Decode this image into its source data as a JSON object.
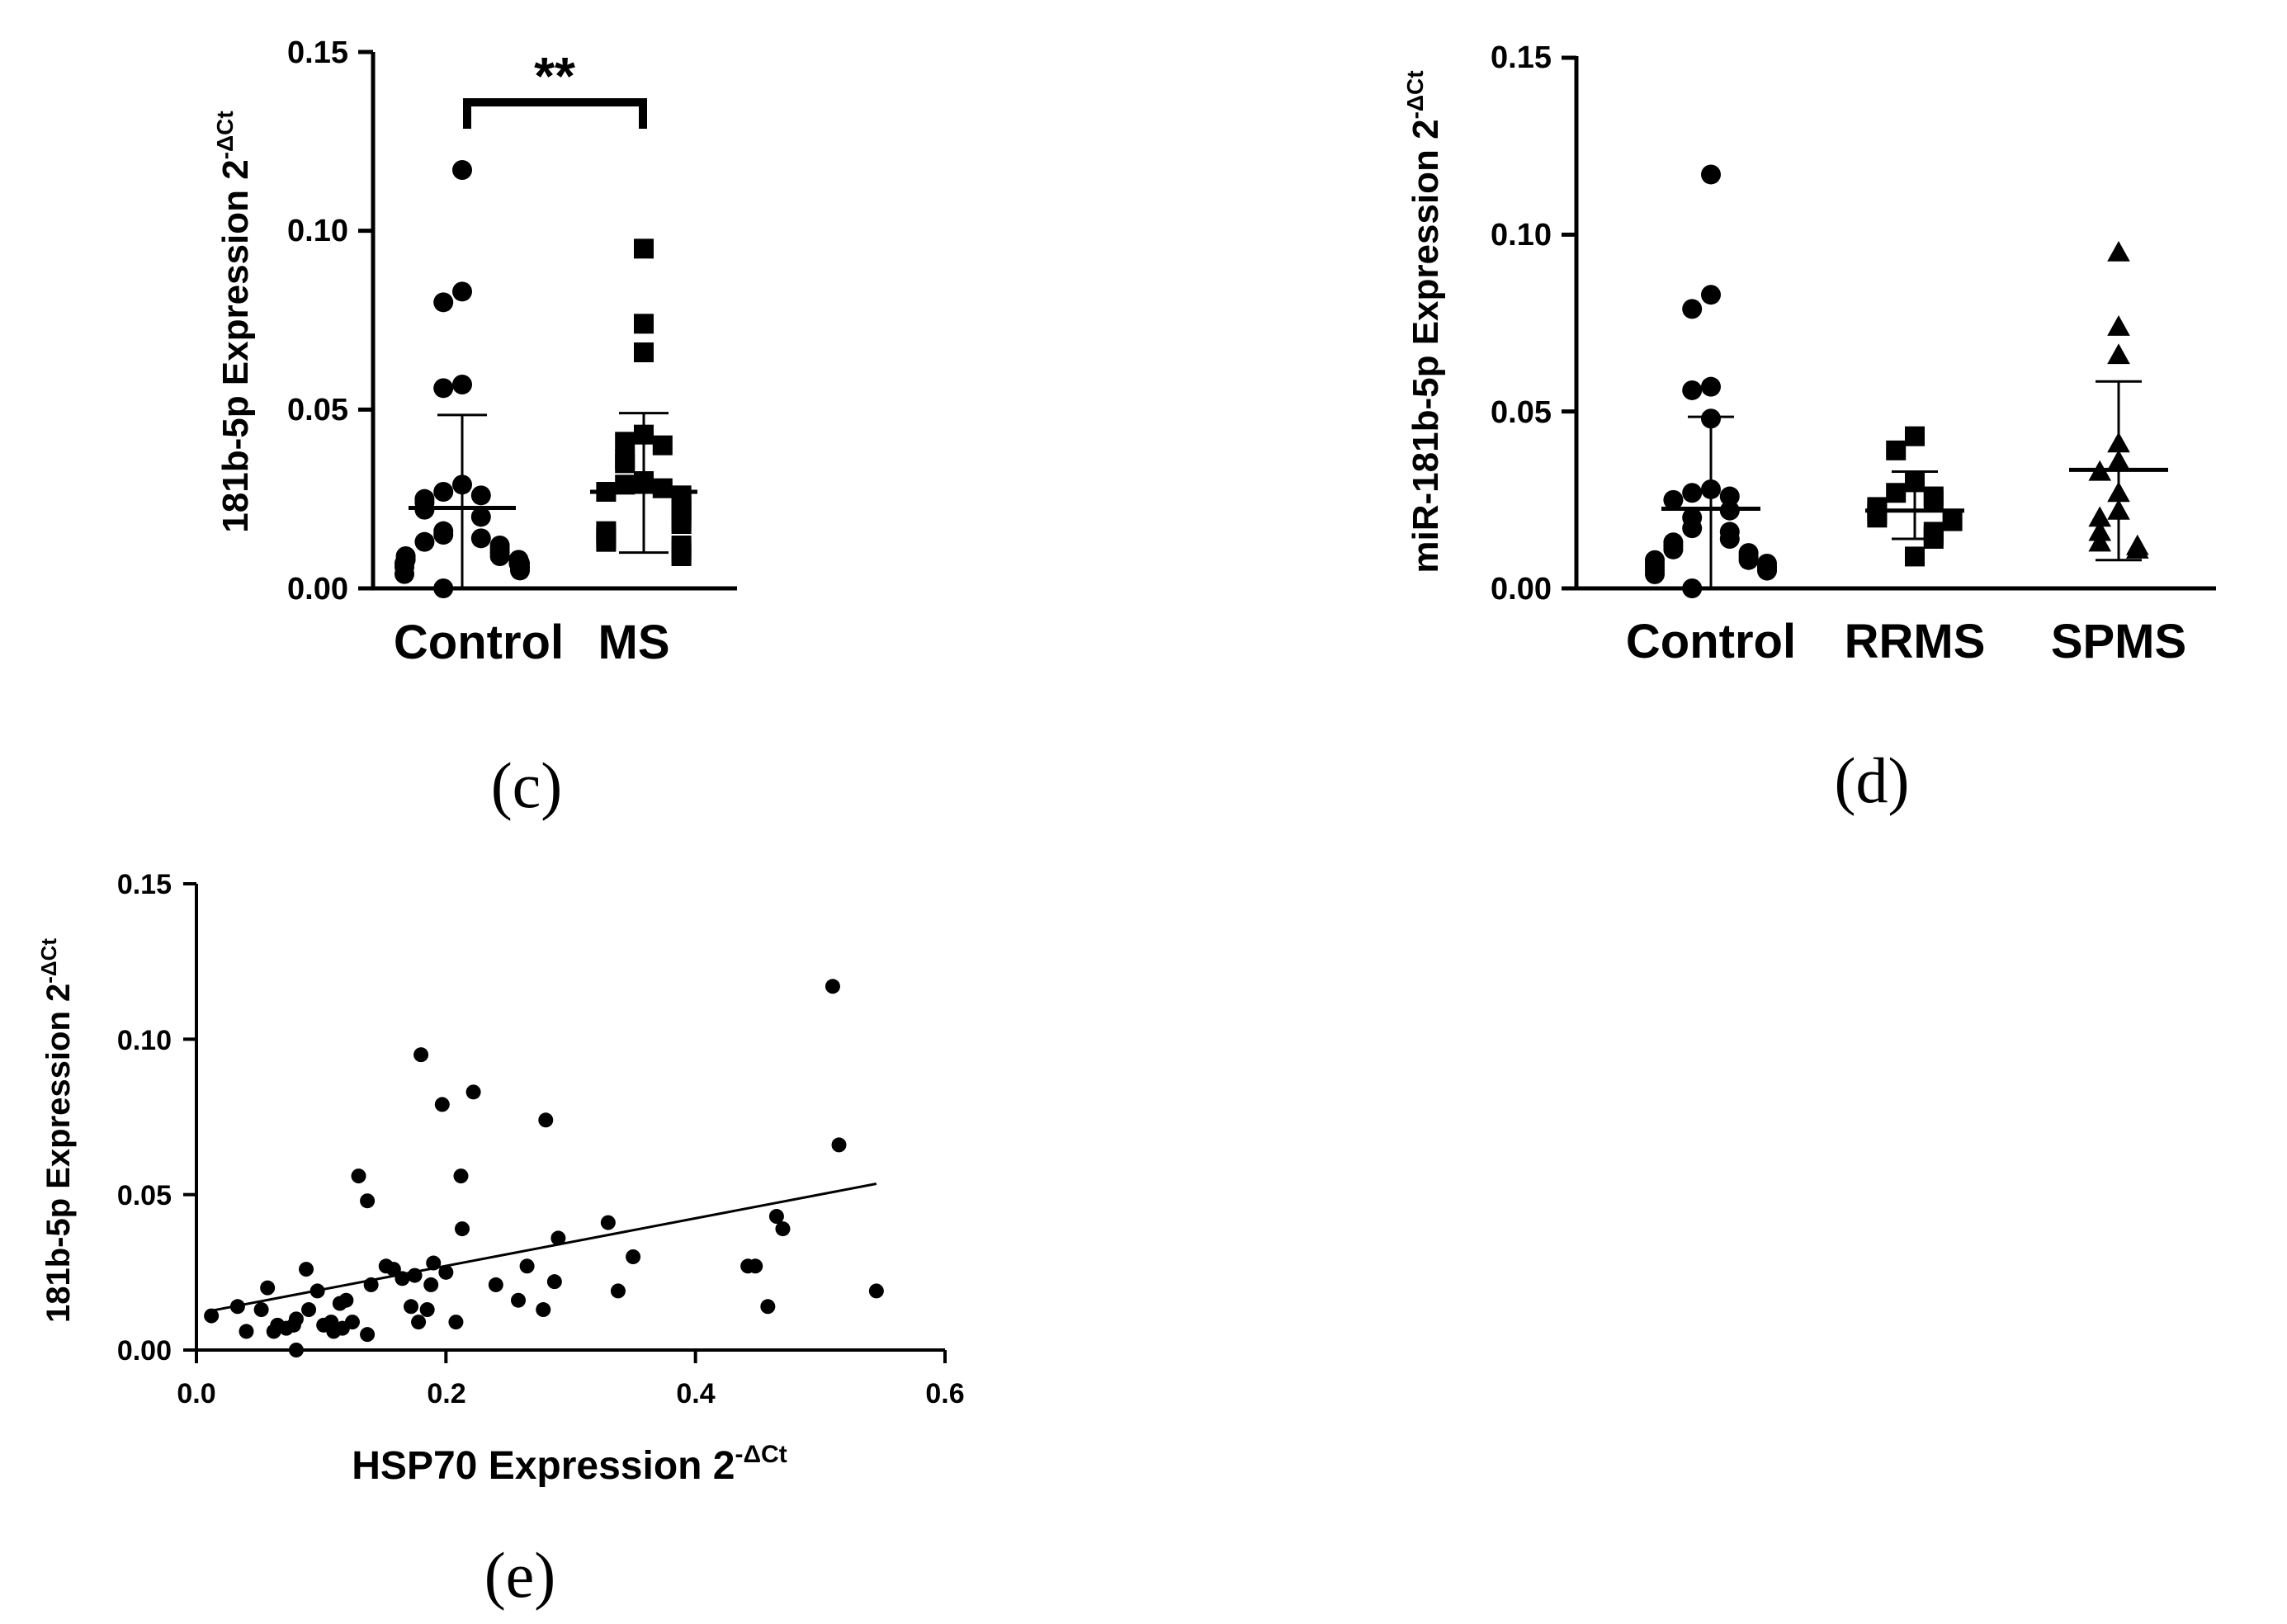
{
  "colors": {
    "ink": "#000000",
    "background": "#ffffff"
  },
  "panel_labels": {
    "c": "(c)",
    "d": "(d)",
    "e": "(e)"
  },
  "chart_data": [
    {
      "id": "c",
      "type": "scatter",
      "subtype": "dot-plot-mean-sd",
      "title": "",
      "xlabel": "",
      "ylabel": "181b-5p Expression 2",
      "ylabel_sup": "-ΔCt",
      "ylim": [
        0,
        0.15
      ],
      "yticks": [
        0.0,
        0.05,
        0.1,
        0.15
      ],
      "ytick_labels": [
        "0.00",
        "0.05",
        "0.10",
        "0.15"
      ],
      "categories": [
        "Control",
        "MS"
      ],
      "significance": {
        "between": [
          "Control",
          "MS"
        ],
        "label": "**"
      },
      "series": [
        {
          "name": "Control",
          "marker": "circle",
          "mean": 0.0225,
          "sd_upper": 0.0485,
          "sd_lower": 0.0,
          "values": [
            0.117,
            0.083,
            0.08,
            0.057,
            0.056,
            0.029,
            0.027,
            0.026,
            0.025,
            0.024,
            0.022,
            0.02,
            0.016,
            0.015,
            0.014,
            0.013,
            0.012,
            0.011,
            0.01,
            0.009,
            0.009,
            0.008,
            0.008,
            0.007,
            0.007,
            0.007,
            0.006,
            0.006,
            0.006,
            0.005,
            0.004,
            0.0
          ]
        },
        {
          "name": "MS",
          "marker": "square",
          "mean": 0.027,
          "sd_upper": 0.049,
          "sd_lower": 0.01,
          "values": [
            0.095,
            0.074,
            0.066,
            0.043,
            0.041,
            0.04,
            0.036,
            0.035,
            0.03,
            0.029,
            0.028,
            0.027,
            0.026,
            0.025,
            0.024,
            0.023,
            0.022,
            0.021,
            0.02,
            0.019,
            0.018,
            0.016,
            0.015,
            0.014,
            0.013,
            0.012,
            0.011,
            0.01,
            0.009
          ]
        }
      ]
    },
    {
      "id": "d",
      "type": "scatter",
      "subtype": "dot-plot-mean-sd",
      "title": "",
      "xlabel": "",
      "ylabel": "miR-181b-5p Expression 2",
      "ylabel_sup": "-ΔCt",
      "ylim": [
        0,
        0.15
      ],
      "yticks": [
        0.0,
        0.05,
        0.1,
        0.15
      ],
      "ytick_labels": [
        "0.00",
        "0.05",
        "0.10",
        "0.15"
      ],
      "categories": [
        "Control",
        "RRMS",
        "SPMS"
      ],
      "series": [
        {
          "name": "Control",
          "marker": "circle",
          "mean": 0.0225,
          "sd_upper": 0.0485,
          "sd_lower": 0.0,
          "values": [
            0.117,
            0.083,
            0.079,
            0.057,
            0.056,
            0.048,
            0.028,
            0.027,
            0.026,
            0.025,
            0.022,
            0.02,
            0.017,
            0.016,
            0.014,
            0.013,
            0.012,
            0.011,
            0.01,
            0.009,
            0.008,
            0.008,
            0.007,
            0.007,
            0.006,
            0.006,
            0.006,
            0.005,
            0.005,
            0.004,
            0.0
          ]
        },
        {
          "name": "RRMS",
          "marker": "square",
          "mean": 0.022,
          "sd_upper": 0.033,
          "sd_lower": 0.014,
          "values": [
            0.043,
            0.039,
            0.03,
            0.027,
            0.026,
            0.025,
            0.023,
            0.022,
            0.021,
            0.02,
            0.019,
            0.016,
            0.015,
            0.014,
            0.009
          ]
        },
        {
          "name": "SPMS",
          "marker": "triangle",
          "mean": 0.0335,
          "sd_upper": 0.0585,
          "sd_lower": 0.008,
          "values": [
            0.095,
            0.074,
            0.066,
            0.041,
            0.036,
            0.033,
            0.027,
            0.022,
            0.02,
            0.016,
            0.013,
            0.012,
            0.011
          ]
        }
      ]
    },
    {
      "id": "e",
      "type": "scatter",
      "subtype": "scatter-with-regression",
      "title": "",
      "xlabel": "HSP70  Expression 2",
      "xlabel_sup": "-ΔCt",
      "ylabel": "181b-5p Expression 2",
      "ylabel_sup": "-ΔCt",
      "xlim": [
        0,
        0.6
      ],
      "ylim": [
        0,
        0.15
      ],
      "xticks": [
        0.0,
        0.2,
        0.4,
        0.6
      ],
      "xtick_labels": [
        "0.0",
        "0.2",
        "0.4",
        "0.6"
      ],
      "yticks": [
        0.0,
        0.05,
        0.1,
        0.15
      ],
      "ytick_labels": [
        "0.00",
        "0.05",
        "0.10",
        "0.15"
      ],
      "regression": {
        "x": [
          0.01,
          0.545
        ],
        "y": [
          0.0125,
          0.0535
        ]
      },
      "points": [
        [
          0.51,
          0.117
        ],
        [
          0.515,
          0.066
        ],
        [
          0.545,
          0.019
        ],
        [
          0.47,
          0.039
        ],
        [
          0.465,
          0.043
        ],
        [
          0.458,
          0.014
        ],
        [
          0.448,
          0.027
        ],
        [
          0.442,
          0.027
        ],
        [
          0.35,
          0.03
        ],
        [
          0.338,
          0.019
        ],
        [
          0.33,
          0.041
        ],
        [
          0.29,
          0.036
        ],
        [
          0.287,
          0.022
        ],
        [
          0.28,
          0.074
        ],
        [
          0.278,
          0.013
        ],
        [
          0.265,
          0.027
        ],
        [
          0.258,
          0.016
        ],
        [
          0.24,
          0.021
        ],
        [
          0.222,
          0.083
        ],
        [
          0.212,
          0.056
        ],
        [
          0.213,
          0.039
        ],
        [
          0.208,
          0.009
        ],
        [
          0.2,
          0.025
        ],
        [
          0.197,
          0.079
        ],
        [
          0.19,
          0.028
        ],
        [
          0.188,
          0.021
        ],
        [
          0.185,
          0.013
        ],
        [
          0.18,
          0.095
        ],
        [
          0.178,
          0.009
        ],
        [
          0.175,
          0.024
        ],
        [
          0.172,
          0.014
        ],
        [
          0.165,
          0.023
        ],
        [
          0.158,
          0.026
        ],
        [
          0.152,
          0.027
        ],
        [
          0.14,
          0.021
        ],
        [
          0.137,
          0.048
        ],
        [
          0.13,
          0.056
        ],
        [
          0.137,
          0.005
        ],
        [
          0.125,
          0.009
        ],
        [
          0.12,
          0.016
        ],
        [
          0.115,
          0.015
        ],
        [
          0.117,
          0.007
        ],
        [
          0.11,
          0.006
        ],
        [
          0.108,
          0.009
        ],
        [
          0.102,
          0.008
        ],
        [
          0.097,
          0.019
        ],
        [
          0.09,
          0.013
        ],
        [
          0.088,
          0.026
        ],
        [
          0.08,
          0.01
        ],
        [
          0.078,
          0.008
        ],
        [
          0.08,
          0.0
        ],
        [
          0.072,
          0.007
        ],
        [
          0.065,
          0.008
        ],
        [
          0.062,
          0.006
        ],
        [
          0.057,
          0.02
        ],
        [
          0.052,
          0.013
        ],
        [
          0.04,
          0.006
        ],
        [
          0.033,
          0.014
        ],
        [
          0.012,
          0.011
        ]
      ]
    }
  ]
}
